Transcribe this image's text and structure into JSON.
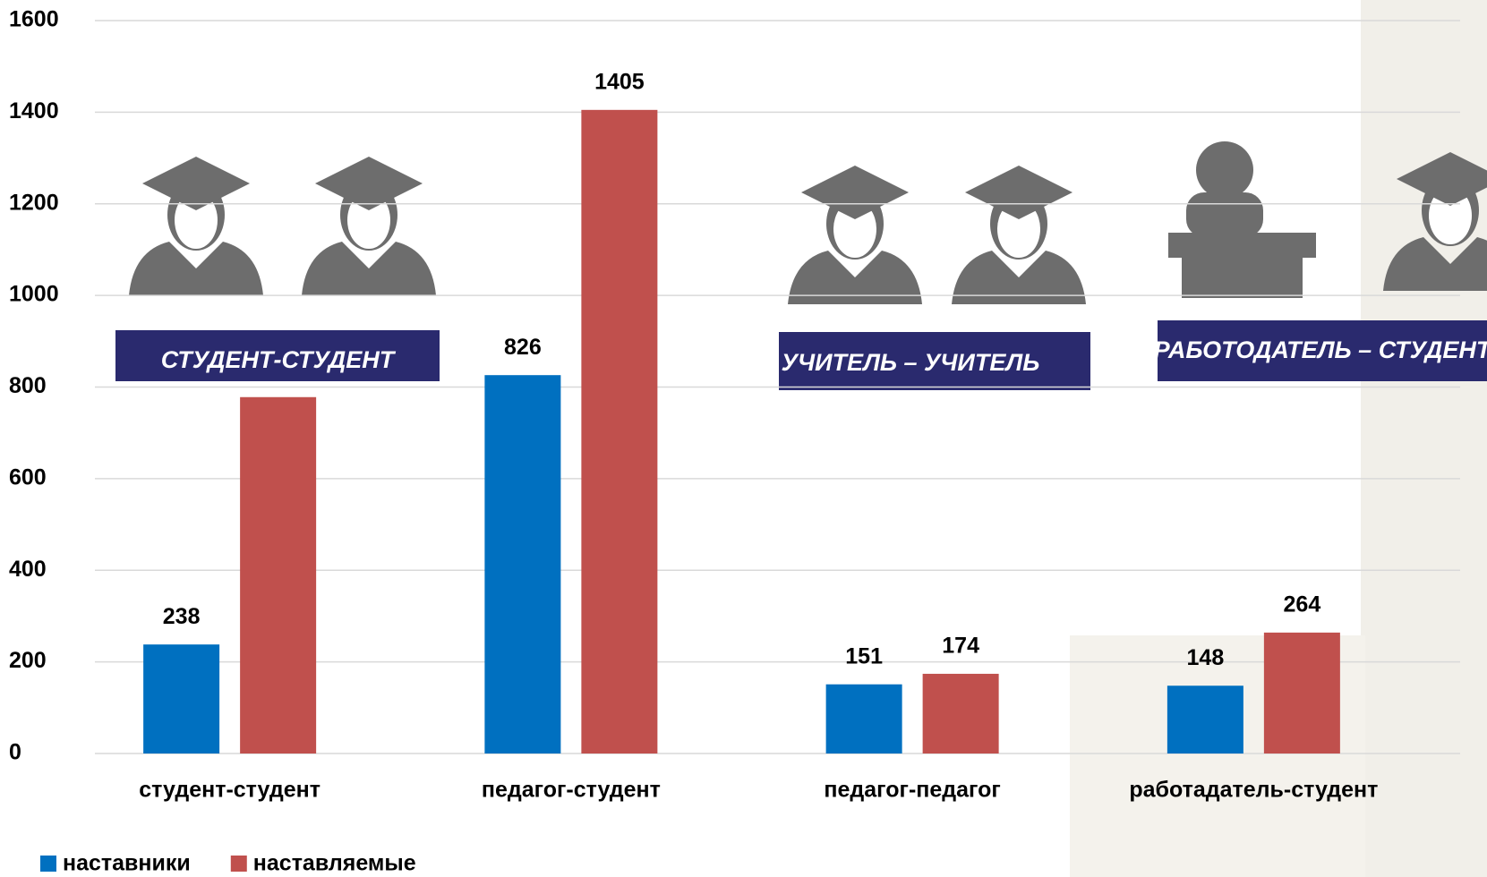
{
  "chart_data": {
    "type": "bar",
    "categories": [
      "студент-студент",
      "педагог-студент",
      "педагог-педагог",
      "работадатель-студент"
    ],
    "series": [
      {
        "name": "наставники",
        "color": "#0070c0",
        "values": [
          238,
          826,
          151,
          148
        ]
      },
      {
        "name": "наставляемые",
        "color": "#c0504d",
        "values": [
          778,
          1405,
          174,
          264
        ],
        "value_labels": [
          null,
          "1405",
          "174",
          "264"
        ]
      }
    ],
    "ylim": [
      0,
      1600
    ],
    "yticks": [
      0,
      200,
      400,
      600,
      800,
      1000,
      1200,
      1400,
      1600
    ],
    "grid": true,
    "legend": "bottom-left",
    "annotations": [
      "СТУДЕНТ-СТУДЕНТ",
      "УЧИТЕЛЬ – УЧИТЕЛЬ",
      "РАБОТОДАТЕЛЬ – СТУДЕНТ"
    ]
  }
}
